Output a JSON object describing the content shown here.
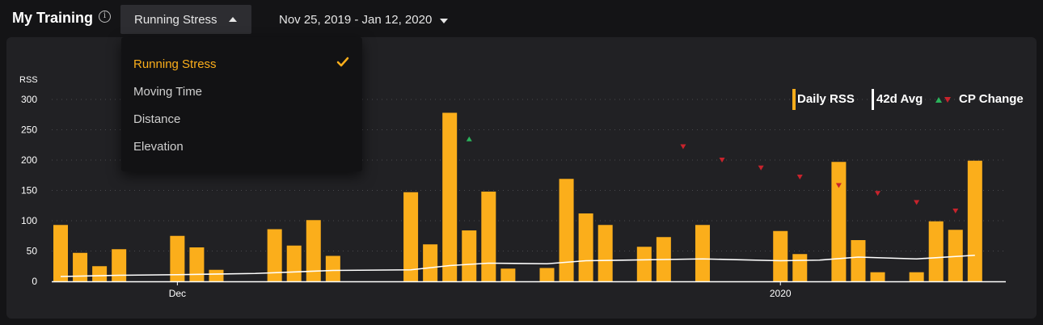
{
  "header": {
    "title": "My Training",
    "info_icon": "info-circle-icon",
    "metric_selector": {
      "label": "Running Stress",
      "icon": "caret-up-icon"
    },
    "date_range": {
      "label": "Nov 25, 2019 - Jan 12, 2020",
      "icon": "caret-down-icon"
    }
  },
  "dropdown": {
    "items": [
      {
        "label": "Running Stress",
        "selected": true
      },
      {
        "label": "Moving Time",
        "selected": false
      },
      {
        "label": "Distance",
        "selected": false
      },
      {
        "label": "Elevation",
        "selected": false
      }
    ],
    "selected_icon": "checkmark-icon"
  },
  "legend": {
    "daily": "Daily RSS",
    "avg": "42d Avg",
    "cp": "CP Change"
  },
  "colors": {
    "bar": "#fbae1b",
    "avg_line": "#ffffff",
    "cp_up": "#2bb35b",
    "cp_down": "#c8232c",
    "background": "#141416",
    "panel": "#212124",
    "accent": "#fbae1b"
  },
  "chart_data": {
    "type": "bar",
    "ylabel": "RSS",
    "ylim": [
      0,
      300
    ],
    "yticks": [
      0,
      50,
      100,
      150,
      200,
      250,
      300
    ],
    "x_start": "2019-11-25",
    "x_end": "2020-01-12",
    "x_tick_labels": [
      {
        "date": "2019-12-01",
        "label": "Dec"
      },
      {
        "date": "2020-01-01",
        "label": "2020"
      }
    ],
    "grid": true,
    "legend_position": "top-right",
    "series": [
      {
        "name": "Daily RSS",
        "type": "bar",
        "points": [
          [
            "2019-11-25",
            93
          ],
          [
            "2019-11-26",
            47
          ],
          [
            "2019-11-27",
            25
          ],
          [
            "2019-11-28",
            53
          ],
          [
            "2019-12-01",
            75
          ],
          [
            "2019-12-02",
            56
          ],
          [
            "2019-12-03",
            19
          ],
          [
            "2019-12-06",
            86
          ],
          [
            "2019-12-07",
            59
          ],
          [
            "2019-12-08",
            101
          ],
          [
            "2019-12-09",
            42
          ],
          [
            "2019-12-13",
            147
          ],
          [
            "2019-12-14",
            61
          ],
          [
            "2019-12-15",
            278
          ],
          [
            "2019-12-16",
            84
          ],
          [
            "2019-12-17",
            148
          ],
          [
            "2019-12-18",
            21
          ],
          [
            "2019-12-20",
            22
          ],
          [
            "2019-12-21",
            169
          ],
          [
            "2019-12-22",
            112
          ],
          [
            "2019-12-23",
            93
          ],
          [
            "2019-12-25",
            57
          ],
          [
            "2019-12-26",
            73
          ],
          [
            "2019-12-28",
            93
          ],
          [
            "2020-01-01",
            83
          ],
          [
            "2020-01-02",
            45
          ],
          [
            "2020-01-04",
            197
          ],
          [
            "2020-01-05",
            68
          ],
          [
            "2020-01-06",
            15
          ],
          [
            "2020-01-08",
            15
          ],
          [
            "2020-01-09",
            99
          ],
          [
            "2020-01-10",
            85
          ],
          [
            "2020-01-11",
            199
          ]
        ]
      },
      {
        "name": "42d Avg",
        "type": "line",
        "points": [
          [
            "2019-11-25",
            8
          ],
          [
            "2019-11-28",
            10
          ],
          [
            "2019-12-01",
            11
          ],
          [
            "2019-12-05",
            13
          ],
          [
            "2019-12-09",
            18
          ],
          [
            "2019-12-13",
            19
          ],
          [
            "2019-12-15",
            26
          ],
          [
            "2019-12-17",
            30
          ],
          [
            "2019-12-20",
            29
          ],
          [
            "2019-12-22",
            34
          ],
          [
            "2019-12-26",
            36
          ],
          [
            "2019-12-28",
            37
          ],
          [
            "2020-01-01",
            34
          ],
          [
            "2020-01-03",
            35
          ],
          [
            "2020-01-05",
            40
          ],
          [
            "2020-01-08",
            37
          ],
          [
            "2020-01-11",
            43
          ]
        ]
      },
      {
        "name": "CP Change",
        "type": "marker",
        "points": [
          [
            "2019-12-16",
            235,
            "up"
          ],
          [
            "2019-12-27",
            222,
            "down"
          ],
          [
            "2019-12-29",
            200,
            "down"
          ],
          [
            "2019-12-31",
            187,
            "down"
          ],
          [
            "2020-01-02",
            172,
            "down"
          ],
          [
            "2020-01-04",
            158,
            "down"
          ],
          [
            "2020-01-06",
            145,
            "down"
          ],
          [
            "2020-01-08",
            130,
            "down"
          ],
          [
            "2020-01-10",
            116,
            "down"
          ]
        ]
      }
    ]
  }
}
